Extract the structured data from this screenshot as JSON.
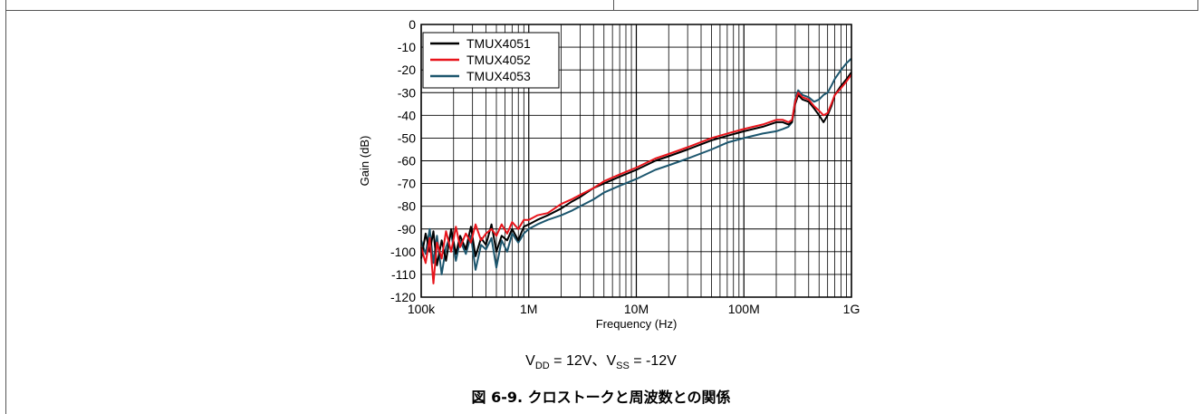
{
  "condition": {
    "vdd_label": "V",
    "vdd_sub": "DD",
    "vdd_value": " = 12V、",
    "vss_label": "V",
    "vss_sub": "SS",
    "vss_value": " = -12V"
  },
  "caption": "図 6-9. クロストークと周波数との関係",
  "chart_data": {
    "type": "line",
    "xscale": "log",
    "xlabel": "Frequency (Hz)",
    "ylabel": "Gain (dB)",
    "xlim": [
      100000,
      1000000000
    ],
    "ylim": [
      -120,
      0
    ],
    "xticks": [
      100000,
      1000000,
      10000000,
      100000000,
      1000000000
    ],
    "xtick_labels": [
      "100k",
      "1M",
      "10M",
      "100M",
      "1G"
    ],
    "yticks": [
      0,
      -10,
      -20,
      -30,
      -40,
      -50,
      -60,
      -70,
      -80,
      -90,
      -100,
      -110,
      -120
    ],
    "ytick_labels": [
      "0",
      "-10",
      "-20",
      "-30",
      "-40",
      "-50",
      "-60",
      "-70",
      "-80",
      "-90",
      "-100",
      "-110",
      "-120"
    ],
    "grid": true,
    "legend_position": "top-left",
    "series": [
      {
        "name": "TMUX4051",
        "color": "#000000",
        "x": [
          100000,
          110000,
          120000,
          130000,
          140000,
          155000,
          170000,
          190000,
          210000,
          230000,
          260000,
          290000,
          320000,
          360000,
          400000,
          450000,
          500000,
          560000,
          630000,
          700000,
          800000,
          900000,
          1000000,
          1200000,
          1500000,
          2000000,
          2500000,
          3000000,
          4000000,
          5000000,
          7000000,
          10000000,
          15000000,
          20000000,
          30000000,
          50000000,
          70000000,
          100000000,
          150000000,
          200000000,
          230000000,
          260000000,
          280000000,
          300000000,
          320000000,
          350000000,
          400000000,
          450000000,
          500000000,
          550000000,
          600000000,
          650000000,
          700000000,
          800000000,
          900000000,
          1000000000
        ],
        "y": [
          -103,
          -92,
          -100,
          -91,
          -106,
          -95,
          -104,
          -90,
          -101,
          -93,
          -99,
          -89,
          -102,
          -94,
          -97,
          -88,
          -100,
          -93,
          -95,
          -90,
          -95,
          -89,
          -88,
          -86,
          -84,
          -81,
          -78,
          -76,
          -72,
          -70,
          -67,
          -64,
          -60,
          -58,
          -55,
          -51,
          -49,
          -47,
          -45,
          -43,
          -43,
          -44,
          -43,
          -35,
          -31,
          -33,
          -34,
          -37,
          -40,
          -43,
          -40,
          -36,
          -31,
          -27,
          -24,
          -21
        ]
      },
      {
        "name": "TMUX4052",
        "color": "#e8141b",
        "x": [
          100000,
          110000,
          120000,
          130000,
          140000,
          155000,
          170000,
          190000,
          210000,
          230000,
          260000,
          290000,
          320000,
          360000,
          400000,
          450000,
          500000,
          560000,
          630000,
          700000,
          800000,
          900000,
          1000000,
          1200000,
          1500000,
          2000000,
          2500000,
          3000000,
          4000000,
          5000000,
          7000000,
          10000000,
          15000000,
          20000000,
          30000000,
          50000000,
          70000000,
          100000000,
          150000000,
          200000000,
          230000000,
          260000000,
          280000000,
          300000000,
          320000000,
          350000000,
          400000000,
          450000000,
          500000000,
          550000000,
          600000000,
          650000000,
          700000000,
          800000000,
          900000000,
          1000000000
        ],
        "y": [
          -98,
          -105,
          -94,
          -114,
          -96,
          -103,
          -91,
          -100,
          -89,
          -98,
          -92,
          -96,
          -88,
          -95,
          -92,
          -90,
          -93,
          -88,
          -92,
          -87,
          -90,
          -86,
          -86,
          -84,
          -83,
          -79,
          -77,
          -75,
          -72,
          -69,
          -66,
          -63,
          -59,
          -57,
          -54,
          -50,
          -48,
          -46,
          -44,
          -42,
          -42,
          -43,
          -42,
          -34,
          -30,
          -32,
          -33,
          -36,
          -38,
          -40,
          -39,
          -35,
          -31,
          -28,
          -25,
          -22
        ]
      },
      {
        "name": "TMUX4053",
        "color": "#1c566e",
        "x": [
          100000,
          110000,
          120000,
          130000,
          140000,
          155000,
          170000,
          190000,
          210000,
          230000,
          260000,
          290000,
          320000,
          360000,
          400000,
          450000,
          500000,
          560000,
          630000,
          700000,
          800000,
          900000,
          1000000,
          1200000,
          1500000,
          2000000,
          2500000,
          3000000,
          4000000,
          5000000,
          7000000,
          10000000,
          15000000,
          20000000,
          30000000,
          50000000,
          70000000,
          100000000,
          150000000,
          200000000,
          230000000,
          260000000,
          280000000,
          300000000,
          320000000,
          350000000,
          400000000,
          450000000,
          500000000,
          550000000,
          600000000,
          650000000,
          700000000,
          800000000,
          900000000,
          1000000000
        ],
        "y": [
          -95,
          -101,
          -90,
          -105,
          -93,
          -110,
          -98,
          -92,
          -104,
          -95,
          -101,
          -93,
          -108,
          -97,
          -99,
          -94,
          -107,
          -95,
          -100,
          -92,
          -96,
          -92,
          -90,
          -88,
          -86,
          -84,
          -82,
          -80,
          -77,
          -74,
          -71,
          -68,
          -64,
          -62,
          -59,
          -55,
          -52,
          -50,
          -48,
          -47,
          -46,
          -45,
          -43,
          -33,
          -29,
          -31,
          -32,
          -34,
          -33,
          -31,
          -30,
          -27,
          -24,
          -20,
          -17,
          -15
        ]
      }
    ]
  }
}
